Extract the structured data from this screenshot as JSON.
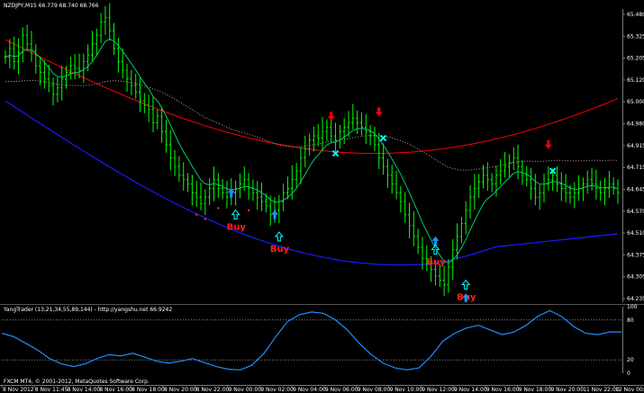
{
  "window": {
    "title": "NZDJPY,M15  66.779 68.740 68.766"
  },
  "indicator": {
    "label": "YangTrader (13,21,34,55,89,144) - http://yangshu.net 66.9242",
    "copyright": "FXCM MT4, © 2001-2012, MetaQuotes Software Corp."
  },
  "colors": {
    "background": "#000000",
    "bull_bar": "#00ff00",
    "fast_ma": "#00cc66",
    "slow_ma": "#ff0000",
    "blue_ma": "#1a1aff",
    "dotted_ma": "#c8a0a0",
    "oscillator": "#1e90ff",
    "up_arrow": "#1e90ff",
    "down_arrow": "#ff0000",
    "buy_text": "#ff2020",
    "exit_cross": "#00ffff"
  },
  "chart_data": [
    {
      "type": "line",
      "subtype": "candlestick-ohlc",
      "symbol": "NZDJPY",
      "timeframe": "M15",
      "y_axis_ticks": [
        "65.480",
        "65.325",
        "65.205",
        "65.120",
        "65.000",
        "64.980",
        "64.915",
        "64.715",
        "64.645",
        "64.570",
        "64.510",
        "64.375",
        "64.305",
        "64.235"
      ],
      "x_axis_ticks": [
        "8 Nov 2012",
        "8 Nov 11:45",
        "8 Nov 14:00",
        "8 Nov 16:00",
        "8 Nov 18:00",
        "8 Nov 20:00",
        "8 Nov 22:00",
        "9 Nov 00:00",
        "9 Nov 02:00",
        "9 Nov 04:00",
        "9 Nov 06:00",
        "9 Nov 08:00",
        "9 Nov 10:00",
        "9 Nov 12:00",
        "9 Nov 14:00",
        "9 Nov 16:00",
        "9 Nov 18:00",
        "9 Nov 20:00",
        "11 Nov 22:00",
        "12 Nov 00:00"
      ],
      "ylim": [
        64.2,
        65.54
      ],
      "close_series": [
        65.32,
        65.36,
        65.3,
        65.34,
        65.42,
        65.38,
        65.35,
        65.28,
        65.25,
        65.22,
        65.19,
        65.15,
        65.18,
        65.22,
        65.25,
        65.28,
        65.27,
        65.26,
        65.3,
        65.33,
        65.38,
        65.42,
        65.48,
        65.5,
        65.44,
        65.36,
        65.3,
        65.26,
        65.22,
        65.19,
        65.16,
        65.12,
        65.1,
        65.08,
        65.02,
        65.05,
        64.98,
        64.92,
        64.86,
        64.82,
        64.78,
        64.76,
        64.74,
        64.7,
        64.68,
        64.65,
        64.68,
        64.72,
        64.76,
        64.72,
        64.7,
        64.68,
        64.7,
        64.72,
        64.74,
        64.76,
        64.72,
        64.7,
        64.68,
        64.66,
        64.64,
        64.6,
        64.62,
        64.66,
        64.7,
        64.72,
        64.76,
        64.8,
        64.86,
        64.9,
        64.94,
        64.96,
        64.95,
        64.98,
        65.0,
        64.96,
        64.94,
        64.98,
        65.0,
        65.02,
        65.04,
        65.02,
        65.0,
        64.98,
        64.96,
        64.92,
        64.86,
        64.82,
        64.78,
        64.74,
        64.7,
        64.66,
        64.6,
        64.55,
        64.5,
        64.45,
        64.4,
        64.38,
        64.35,
        64.32,
        64.3,
        64.28,
        64.36,
        64.44,
        64.5,
        64.56,
        64.62,
        64.68,
        64.72,
        64.75,
        64.78,
        64.76,
        64.74,
        64.78,
        64.8,
        64.82,
        64.84,
        64.86,
        64.82,
        64.78,
        64.76,
        64.72,
        64.68,
        64.7,
        64.74,
        64.76,
        64.78,
        64.74,
        64.72,
        64.7,
        64.68,
        64.7,
        64.72,
        64.74,
        64.76,
        64.74,
        64.72,
        64.7,
        64.72,
        64.74,
        64.72,
        64.7
      ],
      "signals": [
        {
          "kind": "up",
          "index": 52,
          "price": 64.7
        },
        {
          "kind": "up-open",
          "index": 53,
          "price": 64.6,
          "label": "Buy"
        },
        {
          "kind": "up",
          "index": 62,
          "price": 64.6
        },
        {
          "kind": "up-open",
          "index": 63,
          "price": 64.5,
          "label": "Buy"
        },
        {
          "kind": "down",
          "index": 75,
          "price": 65.05
        },
        {
          "kind": "exit",
          "index": 76,
          "price": 64.88
        },
        {
          "kind": "down",
          "index": 86,
          "price": 65.07
        },
        {
          "kind": "exit",
          "index": 87,
          "price": 64.95
        },
        {
          "kind": "up",
          "index": 99,
          "price": 64.48
        },
        {
          "kind": "up-open",
          "index": 99,
          "price": 64.44,
          "label": "Buy"
        },
        {
          "kind": "up-open",
          "index": 106,
          "price": 64.28,
          "label": "Buy"
        },
        {
          "kind": "up",
          "index": 106,
          "price": 64.22
        },
        {
          "kind": "down",
          "index": 125,
          "price": 64.92
        },
        {
          "kind": "exit",
          "index": 126,
          "price": 64.8
        }
      ]
    },
    {
      "type": "line",
      "name": "YangTrader",
      "y_axis_ticks": [
        "100",
        "80",
        "20",
        "0"
      ],
      "ylim": [
        0,
        100
      ],
      "values": [
        60,
        55,
        45,
        35,
        22,
        14,
        10,
        14,
        22,
        28,
        26,
        30,
        24,
        18,
        15,
        18,
        22,
        16,
        10,
        6,
        5,
        12,
        30,
        55,
        78,
        88,
        92,
        90,
        80,
        65,
        45,
        28,
        15,
        8,
        5,
        8,
        25,
        48,
        60,
        68,
        72,
        65,
        58,
        62,
        72,
        86,
        94,
        85,
        70,
        60,
        58,
        62,
        62
      ]
    }
  ]
}
